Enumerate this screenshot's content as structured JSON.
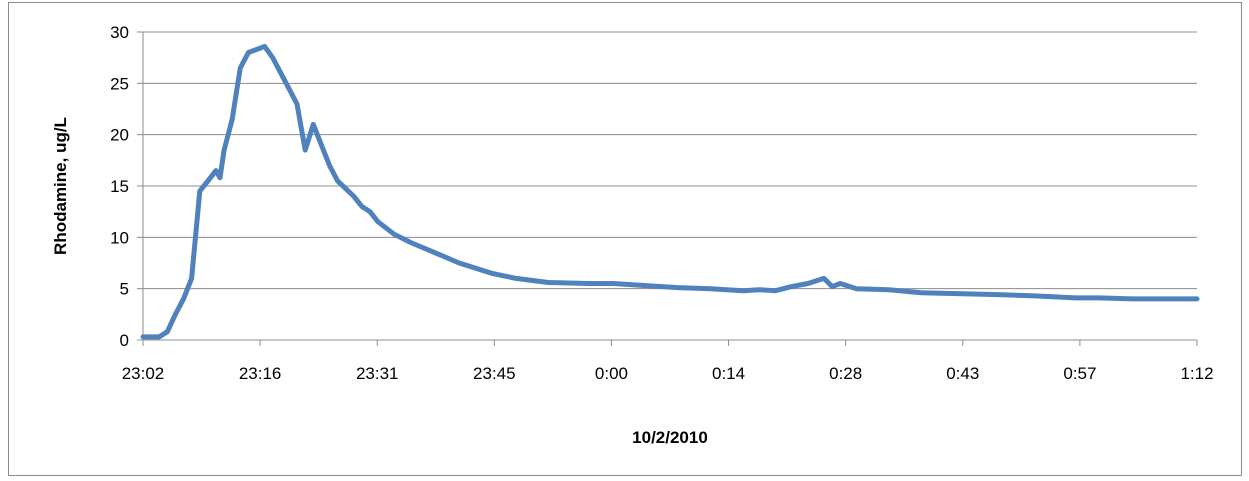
{
  "chart_data": {
    "type": "line",
    "title": "",
    "xlabel": "10/2/2010",
    "ylabel": "Rhodamine, ug/L",
    "x_ticks": [
      "23:02",
      "23:16",
      "23:31",
      "23:45",
      "0:00",
      "0:14",
      "0:28",
      "0:43",
      "0:57",
      "1:12"
    ],
    "y_ticks": [
      "0",
      "5",
      "10",
      "15",
      "20",
      "25",
      "30"
    ],
    "xlim": [
      "23:02",
      "1:12"
    ],
    "ylim": [
      0,
      30
    ],
    "grid": "horizontal",
    "legend": "none",
    "series": [
      {
        "color": "#4f81bd",
        "x": [
          "23:02",
          "23:04",
          "23:05",
          "23:06",
          "23:07",
          "23:08",
          "23:09",
          "23:10",
          "23:11",
          "23:11.5",
          "23:12",
          "23:13",
          "23:13.5",
          "23:14",
          "23:15",
          "23:16",
          "23:17",
          "23:18",
          "23:19",
          "23:20",
          "23:21",
          "23:22",
          "23:23",
          "23:24",
          "23:25",
          "23:26",
          "23:28",
          "23:29",
          "23:30",
          "23:31",
          "23:33",
          "23:35",
          "23:38",
          "23:41",
          "23:45",
          "23:48",
          "23:52",
          "23:57",
          "0:00",
          "0:04",
          "0:08",
          "0:12",
          "0:16",
          "0:18",
          "0:20",
          "0:22",
          "0:24",
          "0:26",
          "0:27",
          "0:28",
          "0:30",
          "0:34",
          "0:38",
          "0:43",
          "0:48",
          "0:52",
          "0:57",
          "1:00",
          "1:04",
          "1:08",
          "1:12"
        ],
        "y": [
          0.3,
          0.3,
          0.8,
          2.5,
          4.0,
          6.0,
          14.5,
          15.5,
          16.5,
          15.8,
          18.5,
          21.5,
          24.0,
          26.5,
          28.0,
          28.3,
          28.6,
          27.5,
          26.0,
          24.5,
          23.0,
          18.5,
          21.0,
          19.0,
          17.0,
          15.5,
          14.0,
          13.0,
          12.5,
          11.5,
          10.3,
          9.5,
          8.5,
          7.5,
          6.5,
          6.0,
          5.6,
          5.5,
          5.5,
          5.3,
          5.1,
          5.0,
          4.8,
          4.9,
          4.8,
          5.2,
          5.5,
          6.0,
          5.2,
          5.5,
          5.0,
          4.9,
          4.6,
          4.5,
          4.4,
          4.3,
          4.1,
          4.1,
          4.0,
          4.0,
          4.0
        ]
      }
    ]
  }
}
